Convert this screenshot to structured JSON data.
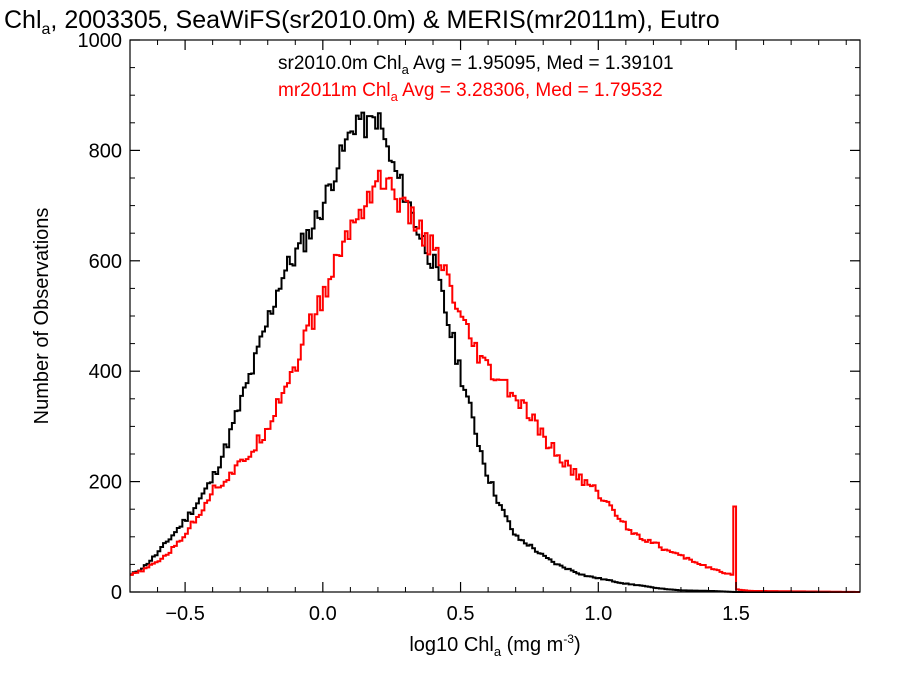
{
  "chart_data": {
    "type": "line",
    "title": {
      "pre": "Chl",
      "sub": "a",
      "post": ", 2003305, SeaWiFS(sr2010.0m) & MERIS(mr2011m), Eutro"
    },
    "xlabel": {
      "pre": "log10 Chl",
      "sub": "a",
      "mid": " (mg m",
      "sup": "-3",
      "post": ")"
    },
    "ylabel": "Number of Observations",
    "xlim": [
      -0.7,
      1.95
    ],
    "ylim": [
      0,
      1000
    ],
    "x_ticks": [
      -0.5,
      0.0,
      0.5,
      1.0,
      1.5
    ],
    "x_tick_labels": [
      "−0.5",
      "0.0",
      "0.5",
      "1.0",
      "1.5"
    ],
    "y_ticks": [
      0,
      200,
      400,
      600,
      800,
      1000
    ],
    "y_tick_labels": [
      "0",
      "200",
      "400",
      "600",
      "800",
      "1000"
    ],
    "grid": false,
    "series": [
      {
        "color": "#000000",
        "legend": {
          "pre": "sr2010.0m Chl",
          "sub": "a",
          "post": " Avg = 1.95095, Med = 1.39101"
        },
        "points": [
          [
            -0.7,
            30
          ],
          [
            -0.65,
            45
          ],
          [
            -0.6,
            70
          ],
          [
            -0.55,
            100
          ],
          [
            -0.5,
            130
          ],
          [
            -0.45,
            165
          ],
          [
            -0.4,
            205
          ],
          [
            -0.35,
            265
          ],
          [
            -0.3,
            340
          ],
          [
            -0.25,
            410
          ],
          [
            -0.2,
            490
          ],
          [
            -0.15,
            570
          ],
          [
            -0.1,
            610
          ],
          [
            -0.05,
            650
          ],
          [
            0.0,
            700
          ],
          [
            0.05,
            770
          ],
          [
            0.1,
            830
          ],
          [
            0.13,
            865
          ],
          [
            0.15,
            840
          ],
          [
            0.2,
            860
          ],
          [
            0.25,
            775
          ],
          [
            0.3,
            720
          ],
          [
            0.35,
            650
          ],
          [
            0.4,
            600
          ],
          [
            0.45,
            500
          ],
          [
            0.5,
            400
          ],
          [
            0.55,
            300
          ],
          [
            0.6,
            210
          ],
          [
            0.65,
            150
          ],
          [
            0.7,
            100
          ],
          [
            0.75,
            85
          ],
          [
            0.8,
            65
          ],
          [
            0.85,
            50
          ],
          [
            0.9,
            40
          ],
          [
            0.95,
            30
          ],
          [
            1.0,
            25
          ],
          [
            1.05,
            20
          ],
          [
            1.1,
            15
          ],
          [
            1.15,
            12
          ],
          [
            1.2,
            8
          ],
          [
            1.25,
            5
          ],
          [
            1.3,
            3
          ],
          [
            1.4,
            2
          ],
          [
            1.5,
            0
          ],
          [
            1.95,
            0
          ]
        ]
      },
      {
        "color": "#ff0000",
        "legend": {
          "pre": "mr2011m Chl",
          "sub": "a",
          "post": " Avg = 3.28306, Med = 1.79532"
        },
        "points": [
          [
            -0.7,
            30
          ],
          [
            -0.65,
            40
          ],
          [
            -0.6,
            55
          ],
          [
            -0.55,
            75
          ],
          [
            -0.5,
            105
          ],
          [
            -0.45,
            140
          ],
          [
            -0.4,
            185
          ],
          [
            -0.35,
            205
          ],
          [
            -0.3,
            230
          ],
          [
            -0.25,
            260
          ],
          [
            -0.2,
            300
          ],
          [
            -0.15,
            360
          ],
          [
            -0.1,
            410
          ],
          [
            -0.05,
            480
          ],
          [
            0.0,
            530
          ],
          [
            0.05,
            600
          ],
          [
            0.1,
            660
          ],
          [
            0.15,
            700
          ],
          [
            0.2,
            750
          ],
          [
            0.25,
            730
          ],
          [
            0.3,
            690
          ],
          [
            0.35,
            660
          ],
          [
            0.4,
            620
          ],
          [
            0.45,
            570
          ],
          [
            0.5,
            490
          ],
          [
            0.55,
            440
          ],
          [
            0.6,
            400
          ],
          [
            0.65,
            380
          ],
          [
            0.7,
            350
          ],
          [
            0.75,
            320
          ],
          [
            0.8,
            280
          ],
          [
            0.85,
            250
          ],
          [
            0.9,
            220
          ],
          [
            0.95,
            200
          ],
          [
            1.0,
            180
          ],
          [
            1.05,
            150
          ],
          [
            1.1,
            120
          ],
          [
            1.15,
            100
          ],
          [
            1.2,
            90
          ],
          [
            1.25,
            75
          ],
          [
            1.3,
            65
          ],
          [
            1.35,
            55
          ],
          [
            1.4,
            45
          ],
          [
            1.45,
            35
          ],
          [
            1.49,
            30
          ],
          [
            1.495,
            150
          ],
          [
            1.5,
            5
          ],
          [
            1.55,
            2
          ],
          [
            1.95,
            0
          ]
        ]
      }
    ]
  }
}
